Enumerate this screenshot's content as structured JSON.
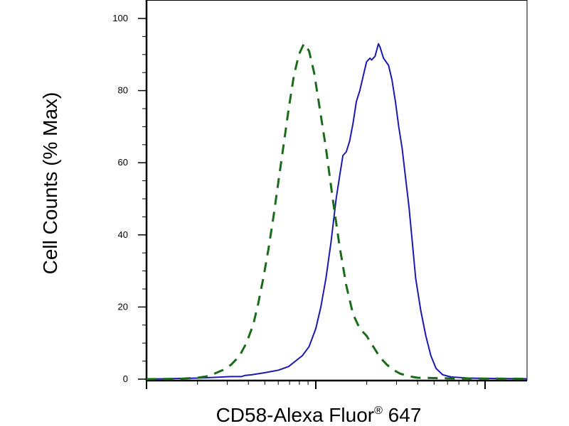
{
  "chart_data": {
    "type": "line",
    "xlabel_main": "CD58-Alexa Fluor",
    "xlabel_reg": "®",
    "xlabel_tail": " 647",
    "ylabel": "Cell Counts (% Max)",
    "x_scale": "log",
    "x_decades": 2.25,
    "ylim": [
      0,
      100
    ],
    "yticks": [
      0,
      20,
      40,
      60,
      80,
      100
    ],
    "ytick_labels": [
      "0",
      "20",
      "40",
      "60",
      "80",
      "100"
    ],
    "grid": false,
    "legend": "none",
    "series": [
      {
        "color": "#1a1ab0",
        "style": "solid",
        "points": [
          [
            0.0,
            0
          ],
          [
            0.3,
            0.3
          ],
          [
            0.4,
            0.5
          ],
          [
            0.5,
            0.7
          ],
          [
            0.56,
            0.7
          ],
          [
            0.58,
            1
          ],
          [
            0.62,
            1.2
          ],
          [
            0.7,
            1.8
          ],
          [
            0.78,
            2.5
          ],
          [
            0.84,
            3.5
          ],
          [
            0.88,
            5
          ],
          [
            0.92,
            6.5
          ],
          [
            0.96,
            9
          ],
          [
            1.0,
            14
          ],
          [
            1.03,
            20
          ],
          [
            1.06,
            28
          ],
          [
            1.09,
            38
          ],
          [
            1.12,
            50
          ],
          [
            1.14,
            56
          ],
          [
            1.16,
            62
          ],
          [
            1.18,
            63
          ],
          [
            1.2,
            66
          ],
          [
            1.22,
            71
          ],
          [
            1.24,
            77
          ],
          [
            1.26,
            80
          ],
          [
            1.28,
            84
          ],
          [
            1.3,
            88
          ],
          [
            1.32,
            89
          ],
          [
            1.33,
            88.5
          ],
          [
            1.35,
            89.5
          ],
          [
            1.37,
            93
          ],
          [
            1.38,
            92
          ],
          [
            1.4,
            89
          ],
          [
            1.43,
            87
          ],
          [
            1.45,
            83
          ],
          [
            1.47,
            77
          ],
          [
            1.49,
            70
          ],
          [
            1.51,
            64
          ],
          [
            1.53,
            56
          ],
          [
            1.55,
            48
          ],
          [
            1.57,
            38
          ],
          [
            1.59,
            28
          ],
          [
            1.62,
            19
          ],
          [
            1.65,
            12
          ],
          [
            1.68,
            6.5
          ],
          [
            1.71,
            3
          ],
          [
            1.75,
            1.2
          ],
          [
            1.8,
            0.6
          ],
          [
            1.9,
            0.3
          ],
          [
            2.0,
            0.2
          ],
          [
            2.25,
            0.1
          ]
        ]
      },
      {
        "color": "#1a6b1a",
        "style": "dashed",
        "points": [
          [
            0.0,
            0
          ],
          [
            0.2,
            0.1
          ],
          [
            0.3,
            0.4
          ],
          [
            0.35,
            0.7
          ],
          [
            0.4,
            1.5
          ],
          [
            0.45,
            2.5
          ],
          [
            0.5,
            4
          ],
          [
            0.55,
            6.5
          ],
          [
            0.59,
            10
          ],
          [
            0.63,
            15
          ],
          [
            0.66,
            21
          ],
          [
            0.69,
            28
          ],
          [
            0.72,
            36
          ],
          [
            0.75,
            45
          ],
          [
            0.78,
            55
          ],
          [
            0.81,
            65
          ],
          [
            0.84,
            75
          ],
          [
            0.87,
            84
          ],
          [
            0.9,
            90
          ],
          [
            0.93,
            93
          ],
          [
            0.96,
            91
          ],
          [
            0.99,
            85
          ],
          [
            1.02,
            76
          ],
          [
            1.06,
            64
          ],
          [
            1.1,
            50
          ],
          [
            1.14,
            37
          ],
          [
            1.18,
            26
          ],
          [
            1.22,
            18
          ],
          [
            1.26,
            14
          ],
          [
            1.3,
            12
          ],
          [
            1.34,
            9
          ],
          [
            1.38,
            6
          ],
          [
            1.42,
            4
          ],
          [
            1.46,
            2.5
          ],
          [
            1.5,
            1.5
          ],
          [
            1.55,
            0.8
          ],
          [
            1.6,
            0.4
          ],
          [
            1.7,
            0.3
          ],
          [
            1.8,
            0.2
          ],
          [
            2.0,
            0.15
          ],
          [
            2.25,
            0.1
          ]
        ]
      }
    ]
  }
}
